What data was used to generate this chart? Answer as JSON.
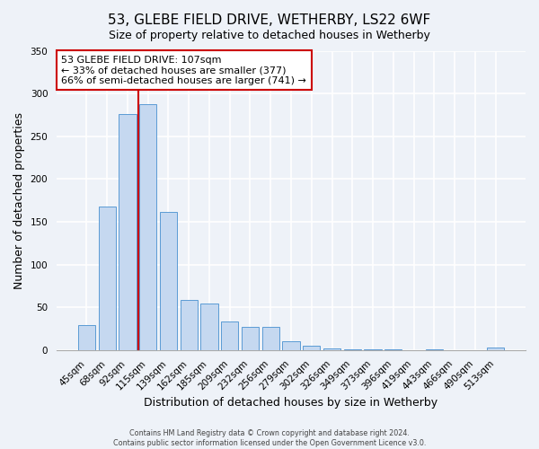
{
  "title": "53, GLEBE FIELD DRIVE, WETHERBY, LS22 6WF",
  "subtitle": "Size of property relative to detached houses in Wetherby",
  "xlabel": "Distribution of detached houses by size in Wetherby",
  "ylabel": "Number of detached properties",
  "categories": [
    "45sqm",
    "68sqm",
    "92sqm",
    "115sqm",
    "139sqm",
    "162sqm",
    "185sqm",
    "209sqm",
    "232sqm",
    "256sqm",
    "279sqm",
    "302sqm",
    "326sqm",
    "349sqm",
    "373sqm",
    "396sqm",
    "419sqm",
    "443sqm",
    "466sqm",
    "490sqm",
    "513sqm"
  ],
  "values": [
    29,
    168,
    276,
    288,
    162,
    59,
    54,
    33,
    27,
    27,
    10,
    5,
    2,
    1,
    1,
    1,
    0,
    1,
    0,
    0,
    3
  ],
  "bar_color": "#c5d8f0",
  "bar_edge_color": "#5b9bd5",
  "vline_color": "#cc0000",
  "vline_position": 2.55,
  "annotation_line1": "53 GLEBE FIELD DRIVE: 107sqm",
  "annotation_line2": "← 33% of detached houses are smaller (377)",
  "annotation_line3": "66% of semi-detached houses are larger (741) →",
  "annotation_box_color": "#ffffff",
  "annotation_box_edge_color": "#cc0000",
  "ylim": [
    0,
    350
  ],
  "yticks": [
    0,
    50,
    100,
    150,
    200,
    250,
    300,
    350
  ],
  "footer_line1": "Contains HM Land Registry data © Crown copyright and database right 2024.",
  "footer_line2": "Contains public sector information licensed under the Open Government Licence v3.0.",
  "background_color": "#eef2f8",
  "plot_background_color": "#eef2f8",
  "title_fontsize": 11,
  "subtitle_fontsize": 9,
  "tick_fontsize": 7.5,
  "label_fontsize": 9
}
